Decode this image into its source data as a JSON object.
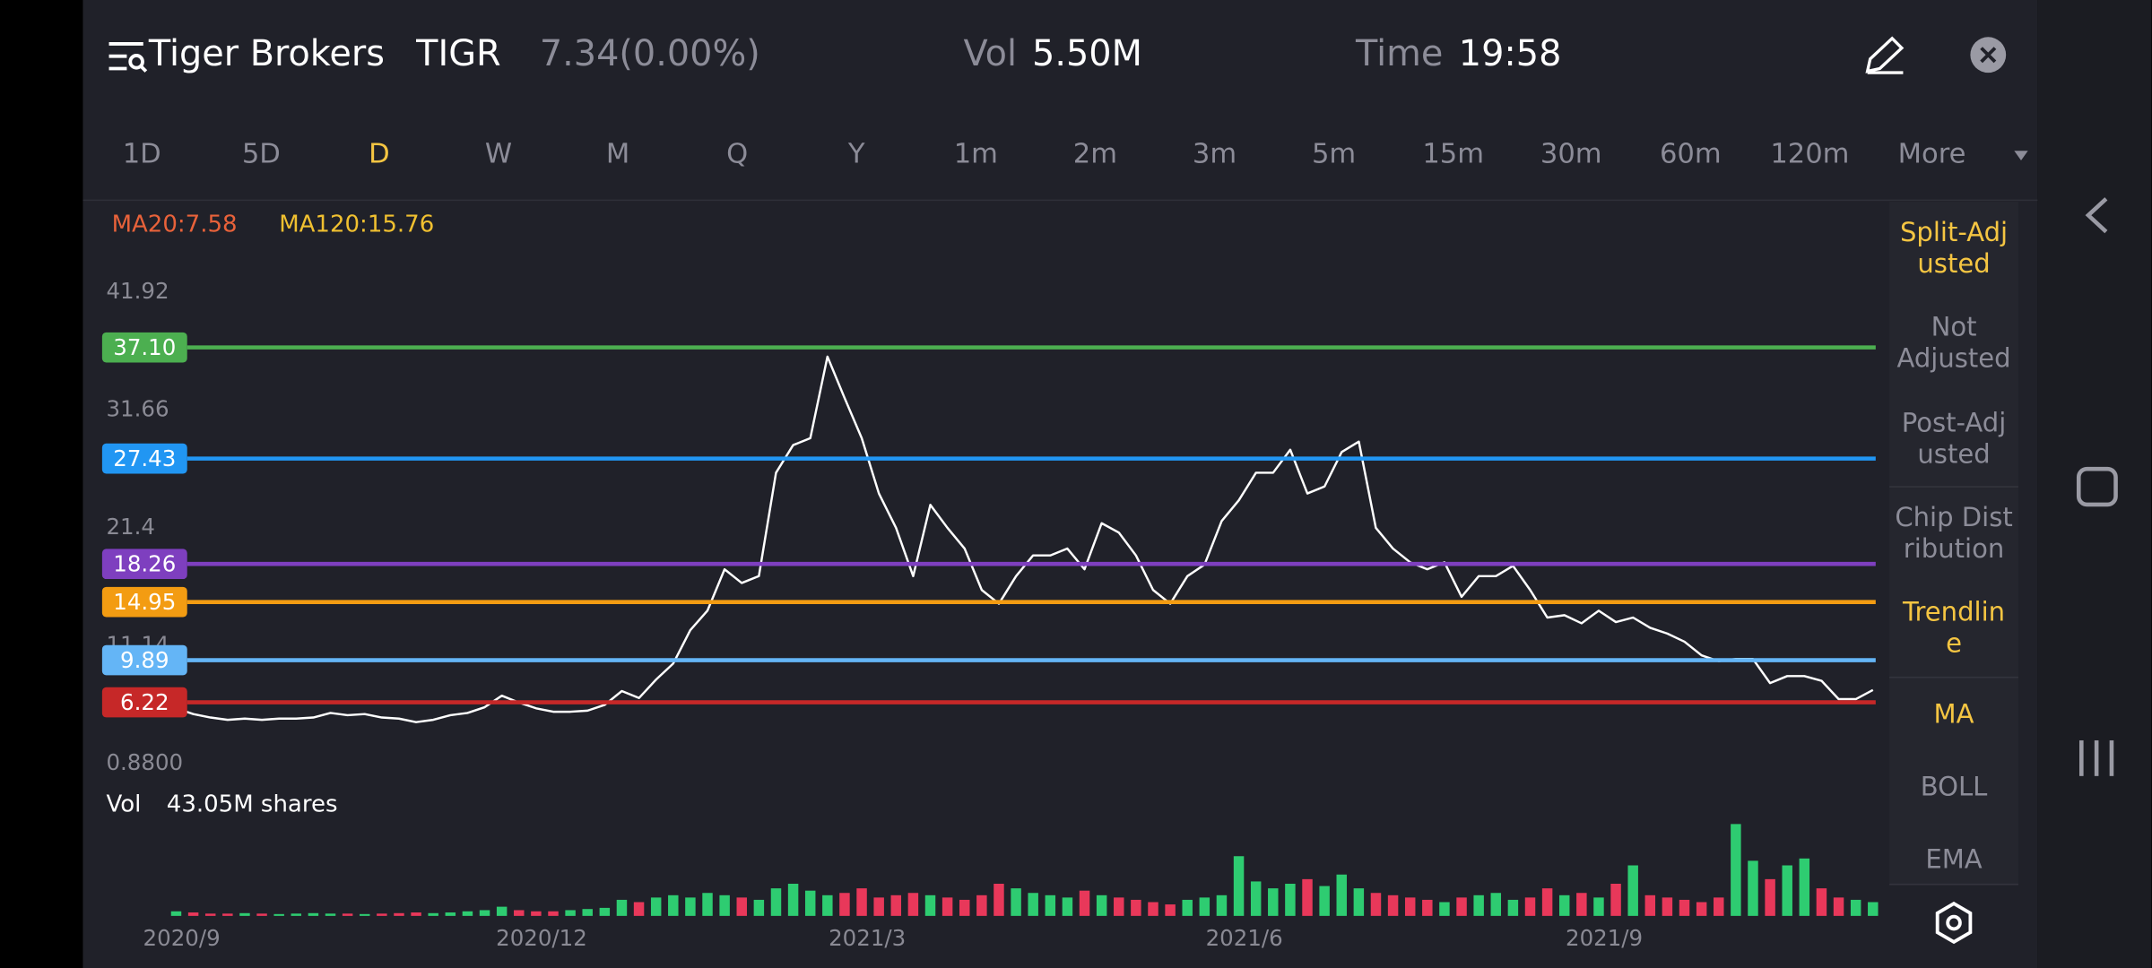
{
  "header": {
    "symbol_name": "Tiger Brokers",
    "ticker": "TIGR",
    "price": "7.34(0.00%)",
    "vol_label": "Vol",
    "vol_value": "5.50M",
    "time_label": "Time",
    "time_value": "19:58"
  },
  "periods": [
    {
      "label": "1D",
      "active": false
    },
    {
      "label": "5D",
      "active": false
    },
    {
      "label": "D",
      "active": true
    },
    {
      "label": "W",
      "active": false
    },
    {
      "label": "M",
      "active": false
    },
    {
      "label": "Q",
      "active": false
    },
    {
      "label": "Y",
      "active": false
    },
    {
      "label": "1m",
      "active": false
    },
    {
      "label": "2m",
      "active": false
    },
    {
      "label": "3m",
      "active": false
    },
    {
      "label": "5m",
      "active": false
    },
    {
      "label": "15m",
      "active": false
    },
    {
      "label": "30m",
      "active": false
    },
    {
      "label": "60m",
      "active": false
    },
    {
      "label": "120m",
      "active": false
    },
    {
      "label": "More",
      "active": false
    }
  ],
  "side_options": [
    {
      "lines": [
        "Split-Adj",
        "usted"
      ],
      "active": true
    },
    {
      "lines": [
        "Not",
        "Adjusted"
      ],
      "active": false
    },
    {
      "lines": [
        "Post-Adj",
        "usted"
      ],
      "active": false
    },
    {
      "lines": [
        "Chip Dist",
        "ribution"
      ],
      "active": false
    },
    {
      "lines": [
        "Trendlin",
        "e"
      ],
      "active": true
    },
    {
      "lines": [
        "MA"
      ],
      "active": true
    },
    {
      "lines": [
        "BOLL"
      ],
      "active": false
    },
    {
      "lines": [
        "EMA"
      ],
      "active": false
    }
  ],
  "indicators": [
    {
      "text": "MA20:7.58",
      "color": "#e8623a"
    },
    {
      "text": "MA120:15.76",
      "color": "#f0c030"
    }
  ],
  "volume_label": {
    "name": "Vol",
    "value": "43.05M shares"
  },
  "chart_data": [
    {
      "type": "line",
      "categories": [
        "2020/9",
        null,
        null,
        null,
        null,
        null,
        null,
        null,
        null,
        null,
        null,
        null,
        null,
        null,
        null,
        null,
        null,
        null,
        null,
        null,
        null,
        "2020/12",
        null,
        null,
        null,
        null,
        null,
        null,
        null,
        null,
        null,
        null,
        null,
        null,
        null,
        null,
        null,
        null,
        null,
        null,
        "2021/3",
        null,
        null,
        null,
        null,
        null,
        null,
        null,
        null,
        null,
        null,
        null,
        null,
        null,
        null,
        null,
        null,
        null,
        null,
        null,
        null,
        null,
        "2021/6",
        null,
        null,
        null,
        null,
        null,
        null,
        null,
        null,
        null,
        null,
        null,
        null,
        null,
        null,
        null,
        null,
        null,
        null,
        null,
        null,
        "2021/9",
        null,
        null,
        null,
        null,
        null,
        null,
        null,
        null,
        null,
        null,
        null,
        null,
        null,
        null,
        null,
        null
      ],
      "series": [
        {
          "color": "#ffffff",
          "values": [
            5.7,
            5.2,
            4.9,
            4.7,
            4.8,
            4.7,
            4.8,
            4.8,
            4.9,
            5.3,
            5.1,
            5.2,
            4.9,
            4.8,
            4.5,
            4.7,
            5.1,
            5.3,
            5.8,
            6.8,
            6.2,
            5.7,
            5.4,
            5.4,
            5.5,
            6.0,
            7.2,
            6.6,
            8.2,
            9.6,
            12.5,
            14.2,
            17.8,
            16.6,
            17.2,
            26.2,
            28.6,
            29.2,
            36.3,
            32.7,
            29.2,
            24.4,
            21.4,
            17.2,
            23.4,
            21.4,
            19.6,
            16.0,
            14.8,
            17.2,
            19.0,
            19.0,
            19.6,
            17.8,
            21.8,
            21.0,
            19.0,
            16.0,
            14.8,
            17.2,
            18.2,
            22.0,
            23.8,
            26.2,
            26.2,
            28.2,
            24.4,
            25.0,
            28.0,
            28.9,
            21.4,
            19.6,
            18.4,
            17.8,
            18.4,
            15.4,
            17.2,
            17.2,
            18.1,
            16.0,
            13.6,
            13.8,
            13.1,
            14.2,
            13.2,
            13.6,
            12.7,
            12.2,
            11.5,
            10.3,
            9.8,
            10.0,
            10.0,
            7.9,
            8.5,
            8.5,
            8.1,
            6.5,
            6.5,
            7.3
          ]
        }
      ],
      "ylim": [
        0.88,
        41.92
      ],
      "yticks": [
        {
          "value": 0.88,
          "label": "0.8800"
        },
        11.14,
        21.4,
        31.66,
        41.92
      ],
      "trendlines": [
        {
          "value": 37.1,
          "label": "37.10",
          "color": "#4caf50"
        },
        {
          "value": 27.43,
          "label": "27.43",
          "color": "#2196f3"
        },
        {
          "value": 18.26,
          "label": "18.26",
          "color": "#7e3fbf"
        },
        {
          "value": 14.95,
          "label": "14.95",
          "color": "#f39c12"
        },
        {
          "value": 9.89,
          "label": "9.89",
          "color": "#64b5f6"
        },
        {
          "value": 6.22,
          "label": "6.22",
          "color": "#c62828"
        }
      ]
    },
    {
      "type": "bar",
      "up_color": "#2ecc71",
      "down_color": "#e8385a",
      "values": [
        2,
        1.5,
        1,
        1,
        1.2,
        1,
        0.8,
        1,
        1.2,
        1,
        1,
        0.8,
        1,
        1.2,
        1.5,
        1.2,
        1.5,
        2,
        2.5,
        4,
        2.5,
        2,
        2,
        2.5,
        3,
        3.5,
        7,
        6,
        8,
        9,
        8,
        10,
        9,
        8,
        7,
        12,
        14,
        11,
        9,
        10,
        12,
        8,
        9,
        10,
        9,
        8,
        7,
        9,
        14,
        12,
        10,
        9,
        8,
        11,
        9,
        8,
        7,
        6,
        5,
        7,
        8,
        9,
        26,
        15,
        12,
        14,
        16,
        13,
        18,
        12,
        10,
        9,
        8,
        7,
        6,
        8,
        9,
        10,
        7,
        8,
        12,
        9,
        10,
        8,
        14,
        22,
        9,
        8,
        7,
        6,
        8,
        40,
        24,
        16,
        22,
        25,
        12,
        8,
        7,
        6
      ]
    }
  ]
}
